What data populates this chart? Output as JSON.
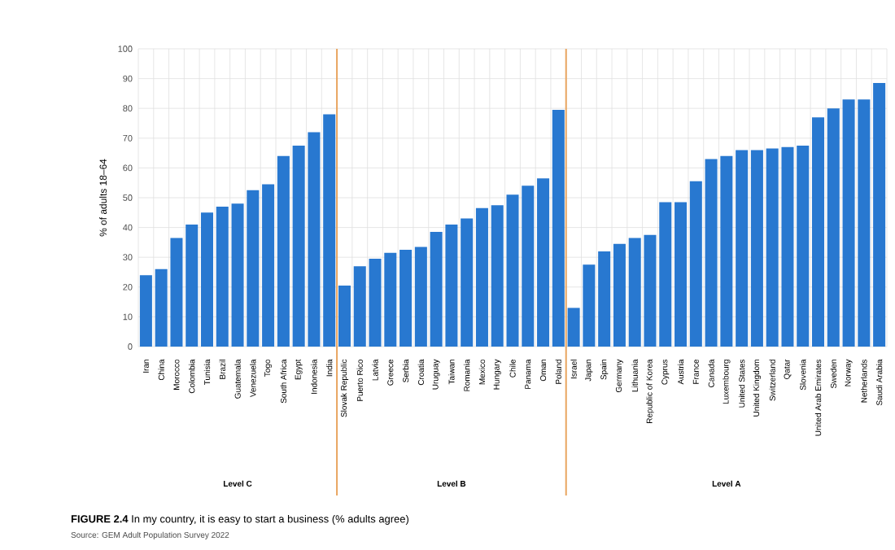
{
  "chart_data": {
    "type": "bar",
    "title": "**FIGURE 2.4** In my country, it is easy to start a business (% adults agree)",
    "ylabel": "% of adults 18–64",
    "categories": [
      "Iran",
      "China",
      "Morocco",
      "Colombia",
      "Tunisia",
      "Brazil",
      "Guatemala",
      "Venezuela",
      "Togo",
      "South Africa",
      "Egypt",
      "Indonesia",
      "India",
      "Slovak Republic",
      "Puerto Rico",
      "Latvia",
      "Greece",
      "Serbia",
      "Croatia",
      "Uruguay",
      "Taiwan",
      "Romania",
      "Mexico",
      "Hungary",
      "Chile",
      "Panama",
      "Oman",
      "Poland",
      "Israel",
      "Japan",
      "Spain",
      "Germany",
      "Lithuania",
      "Republic of Korea",
      "Cyprus",
      "Austria",
      "France",
      "Canada",
      "Luxembourg",
      "United States",
      "United Kingdom",
      "Switzerland",
      "Qatar",
      "Slovenia",
      "United Arab Emirates",
      "Sweden",
      "Norway",
      "Netherlands",
      "Saudi Arabia"
    ],
    "values": [
      24,
      26,
      36.5,
      41,
      45,
      47,
      48,
      52.5,
      54.5,
      64,
      67.5,
      72,
      78,
      20.5,
      27,
      29.5,
      31.5,
      32.5,
      33.5,
      38.5,
      41,
      43,
      46.5,
      47.5,
      51,
      54,
      56.5,
      79.5,
      13,
      27.5,
      32,
      34.5,
      36.5,
      37.5,
      48.5,
      48.5,
      55.5,
      63,
      64,
      66,
      66,
      66.5,
      67,
      67.5,
      77,
      80,
      83,
      83,
      88.5
    ],
    "color": "#2878d0",
    "ylim": [
      0,
      100
    ],
    "yticks": [
      0,
      10,
      20,
      30,
      40,
      50,
      60,
      70,
      80,
      90,
      100
    ],
    "grid": true,
    "annotations": [
      "Level C",
      "Level B",
      "Level A",
      "Source: GEM Adult Population Survey 2022"
    ]
  }
}
